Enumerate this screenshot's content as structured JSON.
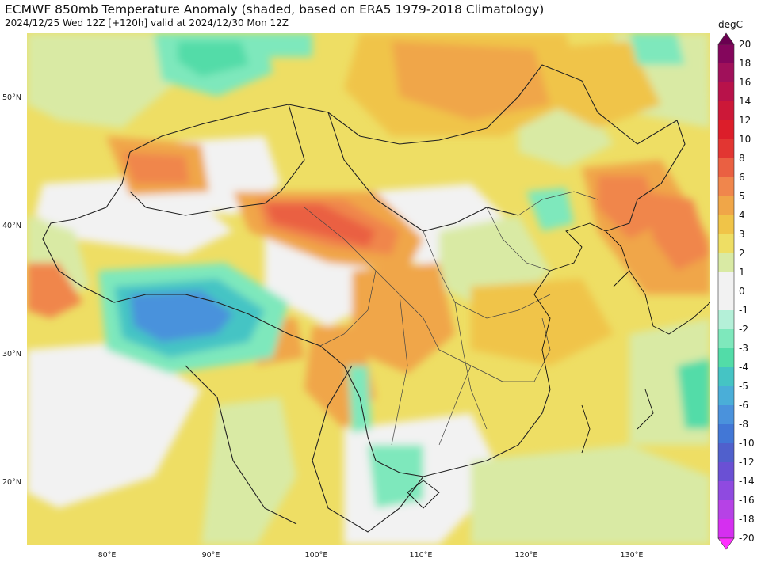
{
  "header": {
    "title": "ECMWF 850mb Temperature Anomaly (shaded, based on ERA5 1979-2018 Climatology)",
    "subtitle": "2024/12/25 Wed 12Z [+120h] valid at 2024/12/30 Mon 12Z"
  },
  "map": {
    "lon_range": [
      72,
      138
    ],
    "lat_range": [
      15,
      55
    ],
    "lat_labels": [
      "20°N",
      "30°N",
      "40°N",
      "50°N"
    ],
    "lon_labels": [
      "80°E",
      "90°E",
      "100°E",
      "110°E",
      "120°E",
      "130°E"
    ]
  },
  "colorbar": {
    "units": "degC",
    "ticks": [
      "-20",
      "-18",
      "-16",
      "-14",
      "-12",
      "-10",
      "-8",
      "-6",
      "-5",
      "-4",
      "-3",
      "-2",
      "-1",
      "0",
      "1",
      "2",
      "3",
      "4",
      "5",
      "6",
      "8",
      "10",
      "12",
      "14",
      "16",
      "18",
      "20"
    ],
    "colors": [
      "#f01cff",
      "#d52ff0",
      "#b642e6",
      "#8f4ae0",
      "#6a50d4",
      "#5060cc",
      "#4277d6",
      "#4a92dc",
      "#4aaed8",
      "#45c4c4",
      "#52dca8",
      "#7ee8bc",
      "#b4f0d8",
      "#f2f2f2",
      "#f2f2f2",
      "#d9eaa4",
      "#eede64",
      "#f0c448",
      "#f0a648",
      "#f0864c",
      "#ea6042",
      "#e23632",
      "#dc1e2a",
      "#cc1838",
      "#b8124a",
      "#a0105a",
      "#84065c"
    ],
    "extend_low_color": "#ff30ff",
    "extend_high_color": "#6a0050"
  },
  "anomaly_regions": [
    {
      "id": "tibet-cold",
      "anomaly": -4,
      "color": "#4a92dc"
    },
    {
      "id": "tibet-cool",
      "anomaly": -2,
      "color": "#7ee8bc"
    },
    {
      "id": "siberia-cool",
      "anomaly": -2,
      "color": "#52dca8"
    },
    {
      "id": "north-china-cool",
      "anomaly": -2,
      "color": "#7ee8bc"
    },
    {
      "id": "yunnan-cool",
      "anomaly": -2,
      "color": "#7ee8bc"
    },
    {
      "id": "hainan-cool",
      "anomaly": -2,
      "color": "#7ee8bc"
    },
    {
      "id": "pacific-cool",
      "anomaly": -2,
      "color": "#52dca8"
    },
    {
      "id": "gansu-warm",
      "anomaly": 6,
      "color": "#ea6042"
    },
    {
      "id": "mongolia-warm",
      "anomaly": 5,
      "color": "#f0864c"
    },
    {
      "id": "manchuria-warm",
      "anomaly": 5,
      "color": "#f0864c"
    },
    {
      "id": "korea-warm",
      "anomaly": 4,
      "color": "#f0a648"
    },
    {
      "id": "kazakh-warm",
      "anomaly": 5,
      "color": "#f0864c"
    },
    {
      "id": "sichuan-warm",
      "anomaly": 4,
      "color": "#f0a648"
    }
  ]
}
